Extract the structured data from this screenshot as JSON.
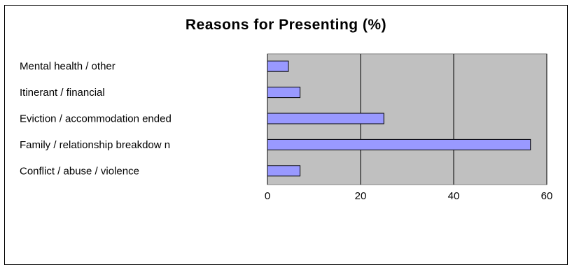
{
  "chart_data": {
    "type": "bar",
    "orientation": "horizontal",
    "title": "Reasons for Presenting (%)",
    "xlabel": "",
    "ylabel": "",
    "categories": [
      "Mental health / other",
      "Itinerant / financial",
      "Eviction / accommodation ended",
      "Family / relationship breakdow n",
      "Conflict / abuse / violence"
    ],
    "values": [
      4.5,
      7,
      25,
      56.5,
      7
    ],
    "xlim": [
      0,
      60
    ],
    "xticks": [
      "0",
      "20",
      "40",
      "60"
    ],
    "grid": true,
    "legend": "none",
    "colors": {
      "bar_fill": "#9999ff",
      "bar_stroke": "#000000",
      "plot_bg": "#c0c0c0",
      "grid": "#000000"
    }
  }
}
